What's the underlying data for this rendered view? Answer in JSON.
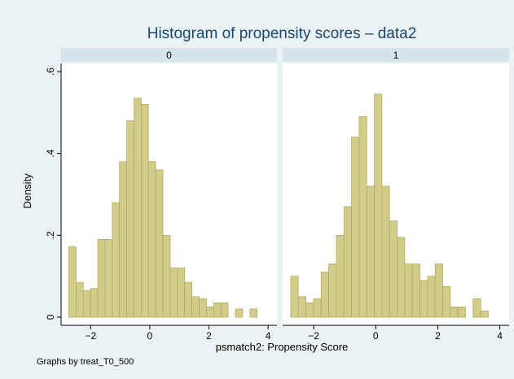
{
  "title": "Histogram of propensity scores – data2",
  "x_label": "psmatch2: Propensity Score",
  "y_label": "Density",
  "note": "Graphs by treat_T0_500",
  "chart_data": [
    {
      "type": "histogram",
      "title": "0",
      "color": "#d2cc88",
      "edge_color": "#aea65c",
      "grid": false,
      "bins": [
        -2.74,
        -2.495,
        -2.25,
        -2.005,
        -1.76,
        -1.515,
        -1.27,
        -1.025,
        -0.78,
        -0.535,
        -0.29,
        -0.045,
        0.2,
        0.445,
        0.69,
        0.935,
        1.18,
        1.425,
        1.67,
        1.915,
        2.16,
        2.405,
        2.65,
        2.895,
        3.14,
        3.385,
        3.63
      ],
      "values": [
        0.172,
        0.085,
        0.065,
        0.07,
        0.19,
        0.19,
        0.28,
        0.38,
        0.48,
        0.535,
        0.52,
        0.38,
        0.36,
        0.2,
        0.12,
        0.12,
        0.085,
        0.05,
        0.045,
        0.025,
        0.035,
        0.035,
        0,
        0.02,
        0,
        0.02
      ],
      "xlim": [
        -3,
        4.3
      ],
      "xticks": [
        {
          "value": -2,
          "label": "−2"
        },
        0,
        2,
        4
      ],
      "ylim": [
        -0.02,
        0.62
      ],
      "yticks": [
        0,
        {
          "value": 0.2,
          "label": ".2"
        },
        {
          "value": 0.4,
          "label": ".4"
        },
        {
          "value": 0.6,
          "label": ".6"
        }
      ]
    },
    {
      "type": "histogram",
      "title": "1",
      "color": "#d2cc88",
      "edge_color": "#aea65c",
      "grid": false,
      "bins": [
        -2.74,
        -2.495,
        -2.25,
        -2.005,
        -1.76,
        -1.515,
        -1.27,
        -1.025,
        -0.78,
        -0.535,
        -0.29,
        -0.045,
        0.2,
        0.445,
        0.69,
        0.935,
        1.18,
        1.425,
        1.67,
        1.915,
        2.16,
        2.405,
        2.65,
        2.895,
        3.14,
        3.385,
        3.63
      ],
      "values": [
        0.1,
        0.05,
        0.035,
        0.045,
        0.11,
        0.13,
        0.2,
        0.27,
        0.44,
        0.49,
        0.32,
        0.545,
        0.32,
        0.235,
        0.195,
        0.13,
        0.13,
        0.09,
        0.1,
        0.13,
        0.075,
        0.025,
        0.025,
        0,
        0.045,
        0.015
      ],
      "xlim": [
        -3,
        4.3
      ],
      "xticks": [
        {
          "value": -2,
          "label": "−2"
        },
        0,
        2,
        4
      ],
      "ylim": [
        -0.02,
        0.62
      ]
    }
  ]
}
